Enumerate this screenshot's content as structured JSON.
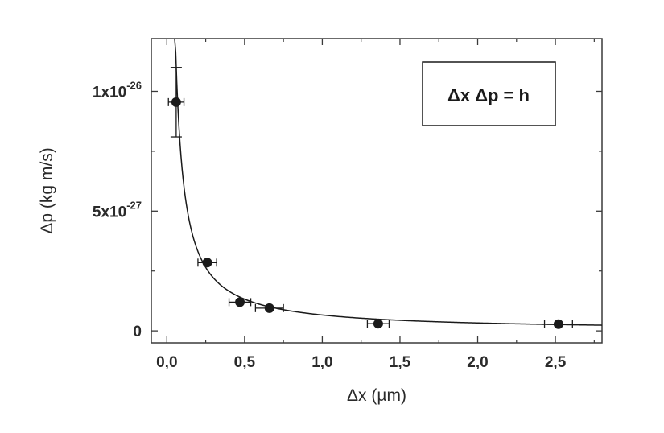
{
  "chart_data": {
    "type": "scatter",
    "xlabel": "Δx (µm)",
    "ylabel": "Δp (kg m/s)",
    "xlim": [
      -0.1,
      2.8
    ],
    "ylim": [
      -5e-28,
      1.22e-26
    ],
    "x_ticks": [
      {
        "value": 0.0,
        "label": "0,0"
      },
      {
        "value": 0.5,
        "label": "0,5"
      },
      {
        "value": 1.0,
        "label": "1,0"
      },
      {
        "value": 1.5,
        "label": "1,5"
      },
      {
        "value": 2.0,
        "label": "2,0"
      },
      {
        "value": 2.5,
        "label": "2,5"
      }
    ],
    "y_ticks": [
      {
        "value": 0,
        "label": "0",
        "exp": ""
      },
      {
        "value": 5e-27,
        "label": "5x10",
        "exp": "-27"
      },
      {
        "value": 1e-26,
        "label": "1x10",
        "exp": "-26"
      }
    ],
    "points": [
      {
        "x": 0.06,
        "y": 9.55e-27,
        "xerr": 0.05,
        "yerr": 1.45e-27
      },
      {
        "x": 0.26,
        "y": 2.85e-27,
        "xerr": 0.06,
        "yerr": 0
      },
      {
        "x": 0.47,
        "y": 1.2e-27,
        "xerr": 0.07,
        "yerr": 0
      },
      {
        "x": 0.66,
        "y": 9.5e-28,
        "xerr": 0.09,
        "yerr": 0
      },
      {
        "x": 1.36,
        "y": 3e-28,
        "xerr": 0.07,
        "yerr": 0
      },
      {
        "x": 2.52,
        "y": 2.8e-28,
        "xerr": 0.09,
        "yerr": 0
      }
    ],
    "fit": {
      "label": "Δx Δp =  h",
      "h": 6.626e-34,
      "xmin": 0.05,
      "xmax": 2.8
    },
    "legend_position": "top-right",
    "grid": false
  }
}
